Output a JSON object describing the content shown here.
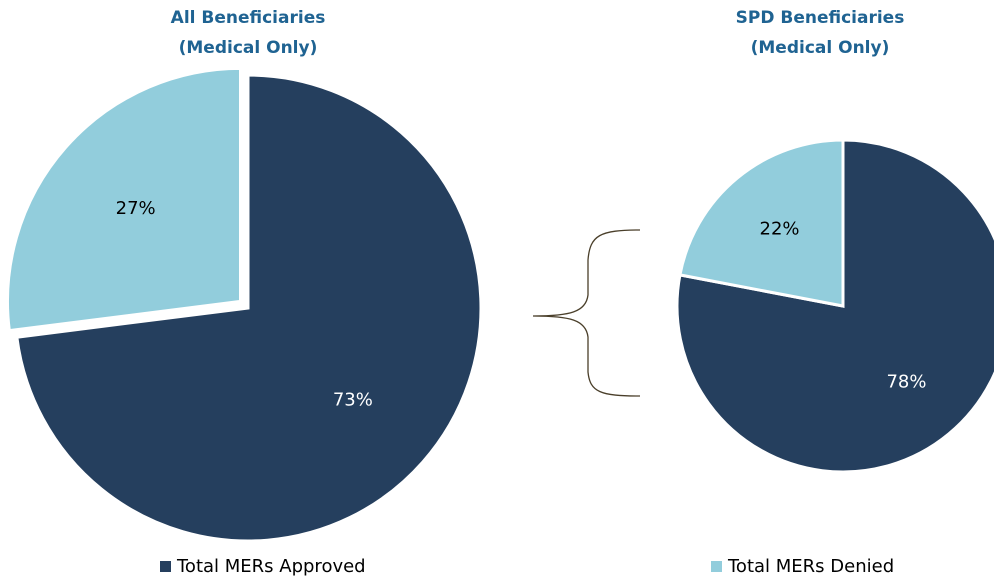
{
  "chart_data": [
    {
      "type": "pie",
      "title": "All Beneficiaries",
      "subtitle": "(Medical Only)",
      "categories": [
        "Total MERs Approved",
        "Total MERs Denied"
      ],
      "values": [
        73,
        27
      ],
      "value_labels": [
        "73%",
        "27%"
      ],
      "colors": [
        "#253f5e",
        "#92cddc"
      ],
      "label_colors": [
        "#ffffff",
        "#000000"
      ],
      "explode": [
        false,
        true
      ]
    },
    {
      "type": "pie",
      "title": "SPD Beneficiaries",
      "subtitle": "(Medical Only)",
      "categories": [
        "Total MERs Approved",
        "Total MERs Denied"
      ],
      "values": [
        78,
        22
      ],
      "value_labels": [
        "78%",
        "22%"
      ],
      "colors": [
        "#253f5e",
        "#92cddc"
      ],
      "label_colors": [
        "#ffffff",
        "#000000"
      ],
      "explode": [
        false,
        false
      ]
    }
  ]
}
